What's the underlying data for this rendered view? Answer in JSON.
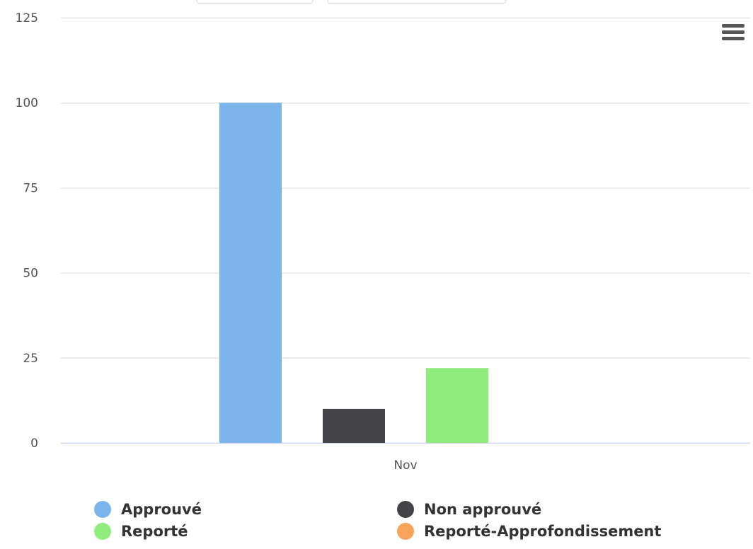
{
  "chart_data": {
    "type": "bar",
    "title": "",
    "xlabel": "",
    "ylabel": "",
    "categories": [
      "Nov"
    ],
    "series": [
      {
        "name": "Approuvé",
        "values": [
          100
        ]
      },
      {
        "name": "Non approuvé",
        "values": [
          10
        ]
      },
      {
        "name": "Reporté",
        "values": [
          22
        ]
      },
      {
        "name": "Reporté-Approfondissement",
        "values": [
          0
        ]
      }
    ],
    "colors": [
      "#7cb5ec",
      "#434348",
      "#90ed7d",
      "#f7a35c"
    ],
    "ylim": [
      0,
      125
    ],
    "yticks": [
      "0",
      "25",
      "50",
      "75",
      "100",
      "125"
    ],
    "grid": true,
    "legend_position": "bottom"
  },
  "colors": {
    "gridline": "#e6e6e6",
    "axis_line": "#ccd6eb",
    "tick_label": "#555555"
  },
  "toolbar": {
    "menu_icon": "hamburger-menu-icon"
  }
}
